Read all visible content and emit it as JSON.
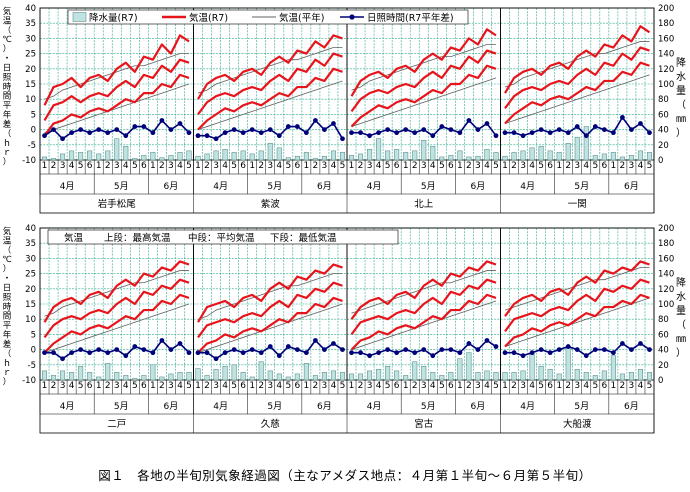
{
  "caption": "図１　各地の半旬別気象経過図（主なアメダス地点：４月第１半旬〜６月第５半旬）",
  "colors": {
    "grid": "#2aa88a",
    "precip_fill": "#bfe3e0",
    "precip_stroke": "#4a8080",
    "temp": "#e8141c",
    "normal": "#606060",
    "sunshine": "#00007a"
  },
  "chart_data": {
    "type": "combo",
    "left_axis_label": "気温（℃）・日照時間平年差（ｈｒ）",
    "right_axis_label": "降水量（㎜）",
    "left_ylim": [
      -10,
      40
    ],
    "left_ticks": [
      -10,
      -5,
      0,
      5,
      10,
      15,
      20,
      25,
      30,
      35,
      40
    ],
    "right_ylim": [
      0,
      200
    ],
    "right_ticks": [
      0,
      20,
      40,
      60,
      80,
      100,
      120,
      140,
      160,
      180,
      200
    ],
    "categories": [
      "1",
      "2",
      "3",
      "4",
      "5",
      "6",
      "1",
      "2",
      "3",
      "4",
      "5",
      "6",
      "1",
      "2",
      "3",
      "4",
      "5"
    ],
    "months": [
      "4月",
      "5月",
      "6月"
    ],
    "legend_top": [
      "降水量(R7)",
      "気温(R7)",
      "気温(平年)",
      "日照時間(R7平年差)"
    ],
    "legend_bottom": {
      "a": "気温",
      "b": "上段：最高気温",
      "c": "中段：平均気温",
      "d": "下段：最低気温"
    },
    "panels": [
      {
        "station": "岩手松尾",
        "tmax": [
          8,
          14,
          15,
          17,
          14,
          17,
          18,
          16,
          20,
          22,
          19,
          24,
          23,
          28,
          25,
          31,
          29
        ],
        "tavg": [
          3,
          8,
          9,
          11,
          9,
          11,
          12,
          11,
          14,
          16,
          14,
          18,
          17,
          21,
          19,
          23,
          22
        ],
        "tmin": [
          -2,
          2,
          3,
          5,
          4,
          6,
          7,
          6,
          8,
          10,
          9,
          12,
          12,
          15,
          14,
          18,
          17
        ],
        "nmax": [
          10,
          11,
          13,
          14,
          15,
          16,
          17,
          18,
          19,
          20,
          21,
          21,
          22,
          23,
          24,
          25,
          25
        ],
        "nmin": [
          -1,
          0,
          1,
          2,
          3,
          4,
          5,
          6,
          7,
          8,
          9,
          10,
          11,
          12,
          13,
          14,
          15
        ],
        "sun": [
          -2,
          0,
          -3,
          -1,
          0,
          -1,
          0,
          -1,
          0,
          -2,
          1,
          1,
          -1,
          3,
          0,
          2,
          -1
        ],
        "precip": [
          4,
          2,
          8,
          12,
          10,
          12,
          8,
          12,
          28,
          18,
          2,
          6,
          10,
          3,
          6,
          10,
          12
        ]
      },
      {
        "station": "紫波",
        "tmax": [
          10,
          15,
          17,
          18,
          16,
          19,
          20,
          18,
          22,
          24,
          22,
          26,
          25,
          29,
          27,
          31,
          30
        ],
        "tavg": [
          5,
          9,
          11,
          12,
          11,
          13,
          14,
          13,
          16,
          18,
          16,
          20,
          19,
          23,
          21,
          25,
          24
        ],
        "tmin": [
          0,
          3,
          5,
          7,
          6,
          8,
          9,
          8,
          10,
          12,
          11,
          14,
          14,
          17,
          16,
          20,
          19
        ],
        "nmax": [
          12,
          13,
          15,
          16,
          17,
          18,
          19,
          20,
          21,
          22,
          23,
          23,
          24,
          25,
          26,
          27,
          27
        ],
        "nmin": [
          0,
          1,
          2,
          3,
          4,
          5,
          6,
          7,
          8,
          9,
          10,
          11,
          12,
          13,
          14,
          15,
          16
        ],
        "sun": [
          -2,
          -2,
          -3,
          -1,
          0,
          -1,
          0,
          -1,
          0,
          -2,
          1,
          1,
          -1,
          3,
          0,
          2,
          -3
        ],
        "precip": [
          5,
          8,
          12,
          14,
          10,
          12,
          8,
          12,
          22,
          16,
          3,
          5,
          10,
          2,
          5,
          12,
          10
        ]
      },
      {
        "station": "北上",
        "tmax": [
          11,
          16,
          18,
          19,
          17,
          20,
          21,
          19,
          23,
          25,
          23,
          27,
          26,
          30,
          28,
          33,
          31
        ],
        "tavg": [
          6,
          10,
          12,
          13,
          12,
          14,
          15,
          14,
          17,
          19,
          17,
          21,
          20,
          24,
          22,
          26,
          25
        ],
        "tmin": [
          1,
          4,
          6,
          8,
          7,
          9,
          10,
          9,
          11,
          13,
          12,
          15,
          15,
          18,
          17,
          21,
          20
        ],
        "nmax": [
          13,
          14,
          16,
          17,
          18,
          19,
          20,
          21,
          22,
          23,
          24,
          24,
          25,
          26,
          27,
          28,
          28
        ],
        "nmin": [
          1,
          2,
          3,
          4,
          5,
          6,
          7,
          8,
          9,
          10,
          11,
          12,
          13,
          14,
          15,
          16,
          17
        ],
        "sun": [
          -1,
          -1,
          -2,
          -1,
          0,
          -1,
          0,
          -1,
          0,
          -2,
          1,
          0,
          -1,
          3,
          0,
          2,
          -2
        ],
        "precip": [
          6,
          8,
          14,
          28,
          12,
          14,
          10,
          12,
          26,
          18,
          4,
          6,
          12,
          4,
          5,
          14,
          10
        ]
      },
      {
        "station": "一関",
        "tmax": [
          12,
          17,
          19,
          20,
          18,
          21,
          22,
          20,
          24,
          26,
          24,
          28,
          27,
          31,
          29,
          34,
          32
        ],
        "tavg": [
          7,
          11,
          13,
          14,
          13,
          15,
          16,
          15,
          18,
          20,
          18,
          22,
          21,
          25,
          23,
          27,
          26
        ],
        "tmin": [
          2,
          5,
          7,
          9,
          8,
          10,
          11,
          10,
          12,
          14,
          13,
          16,
          16,
          19,
          18,
          22,
          21
        ],
        "nmax": [
          14,
          15,
          17,
          18,
          19,
          20,
          21,
          22,
          23,
          24,
          25,
          25,
          26,
          27,
          28,
          29,
          29
        ],
        "nmin": [
          2,
          3,
          4,
          5,
          6,
          7,
          8,
          9,
          10,
          11,
          12,
          13,
          14,
          15,
          16,
          17,
          18
        ],
        "sun": [
          -1,
          -1,
          -2,
          -1,
          0,
          -1,
          0,
          -1,
          1,
          -2,
          1,
          0,
          -1,
          4,
          0,
          2,
          -1
        ],
        "precip": [
          5,
          10,
          12,
          16,
          18,
          12,
          10,
          22,
          30,
          44,
          6,
          8,
          10,
          4,
          6,
          12,
          10
        ]
      },
      {
        "station": "二戸",
        "tmax": [
          9,
          14,
          16,
          17,
          15,
          18,
          19,
          17,
          21,
          23,
          21,
          25,
          24,
          27,
          26,
          29,
          28
        ],
        "tavg": [
          4,
          8,
          10,
          11,
          10,
          12,
          13,
          12,
          15,
          17,
          15,
          19,
          18,
          21,
          20,
          23,
          22
        ],
        "tmin": [
          -1,
          2,
          4,
          6,
          5,
          7,
          8,
          7,
          9,
          11,
          10,
          13,
          13,
          16,
          15,
          18,
          17
        ],
        "nmax": [
          11,
          12,
          14,
          15,
          16,
          17,
          18,
          19,
          20,
          21,
          22,
          22,
          23,
          24,
          25,
          26,
          26
        ],
        "nmin": [
          -1,
          0,
          1,
          2,
          3,
          4,
          5,
          6,
          7,
          8,
          9,
          10,
          11,
          12,
          13,
          14,
          15
        ],
        "sun": [
          -1,
          -1,
          -3,
          -1,
          0,
          -1,
          0,
          -1,
          0,
          -2,
          1,
          0,
          -1,
          3,
          0,
          2,
          -1
        ],
        "precip": [
          12,
          6,
          12,
          10,
          18,
          10,
          4,
          22,
          10,
          6,
          2,
          6,
          20,
          4,
          8,
          10,
          10
        ]
      },
      {
        "station": "久慈",
        "tmax": [
          9,
          14,
          15,
          16,
          14,
          17,
          18,
          16,
          20,
          22,
          20,
          24,
          23,
          26,
          25,
          28,
          27
        ],
        "tavg": [
          4,
          8,
          9,
          10,
          9,
          11,
          12,
          11,
          14,
          16,
          14,
          18,
          17,
          20,
          19,
          22,
          21
        ],
        "tmin": [
          -1,
          2,
          3,
          5,
          4,
          6,
          7,
          6,
          8,
          10,
          9,
          12,
          12,
          15,
          14,
          17,
          16
        ],
        "nmax": [
          10,
          11,
          13,
          14,
          15,
          16,
          17,
          18,
          19,
          20,
          21,
          21,
          22,
          23,
          24,
          25,
          25
        ],
        "nmin": [
          -1,
          0,
          1,
          2,
          3,
          4,
          5,
          6,
          7,
          8,
          9,
          10,
          11,
          12,
          13,
          14,
          15
        ],
        "sun": [
          -1,
          -1,
          -3,
          -1,
          0,
          -1,
          0,
          -1,
          1,
          -2,
          1,
          0,
          -1,
          3,
          0,
          2,
          0
        ],
        "precip": [
          15,
          6,
          14,
          18,
          20,
          10,
          4,
          24,
          12,
          8,
          4,
          8,
          22,
          6,
          10,
          12,
          10
        ]
      },
      {
        "station": "宮古",
        "tmax": [
          10,
          14,
          16,
          17,
          15,
          18,
          19,
          17,
          21,
          23,
          21,
          25,
          24,
          27,
          26,
          29,
          28
        ],
        "tavg": [
          5,
          9,
          10,
          11,
          10,
          12,
          13,
          12,
          15,
          17,
          15,
          19,
          18,
          21,
          20,
          23,
          22
        ],
        "tmin": [
          0,
          3,
          4,
          6,
          5,
          7,
          8,
          7,
          9,
          11,
          10,
          13,
          13,
          16,
          15,
          18,
          17
        ],
        "nmax": [
          12,
          13,
          14,
          15,
          16,
          17,
          18,
          19,
          20,
          21,
          22,
          22,
          23,
          24,
          25,
          26,
          26
        ],
        "nmin": [
          0,
          1,
          2,
          3,
          4,
          5,
          6,
          7,
          8,
          9,
          10,
          11,
          12,
          13,
          14,
          15,
          16
        ],
        "sun": [
          -1,
          -1,
          -2,
          -1,
          0,
          -1,
          0,
          -1,
          0,
          -2,
          0,
          0,
          -1,
          2,
          0,
          3,
          1
        ],
        "precip": [
          8,
          8,
          12,
          14,
          18,
          12,
          6,
          24,
          18,
          10,
          6,
          10,
          28,
          36,
          10,
          12,
          10
        ]
      },
      {
        "station": "大船渡",
        "tmax": [
          11,
          15,
          17,
          18,
          16,
          19,
          20,
          18,
          22,
          24,
          22,
          26,
          25,
          27,
          26,
          29,
          28
        ],
        "tavg": [
          6,
          10,
          11,
          12,
          11,
          13,
          14,
          13,
          16,
          18,
          16,
          20,
          19,
          21,
          20,
          23,
          22
        ],
        "tmin": [
          1,
          4,
          5,
          7,
          6,
          8,
          9,
          8,
          10,
          12,
          11,
          14,
          14,
          16,
          15,
          18,
          17
        ],
        "nmax": [
          13,
          14,
          15,
          16,
          17,
          18,
          19,
          20,
          21,
          22,
          23,
          23,
          24,
          25,
          26,
          27,
          27
        ],
        "nmin": [
          1,
          2,
          3,
          4,
          5,
          6,
          7,
          8,
          9,
          10,
          11,
          12,
          13,
          14,
          15,
          16,
          17
        ],
        "sun": [
          -1,
          -1,
          -2,
          -1,
          0,
          -1,
          0,
          1,
          0,
          -2,
          0,
          0,
          -1,
          2,
          0,
          2,
          0
        ],
        "precip": [
          10,
          10,
          12,
          34,
          18,
          14,
          8,
          44,
          14,
          10,
          6,
          12,
          32,
          8,
          10,
          14,
          10
        ]
      }
    ]
  }
}
